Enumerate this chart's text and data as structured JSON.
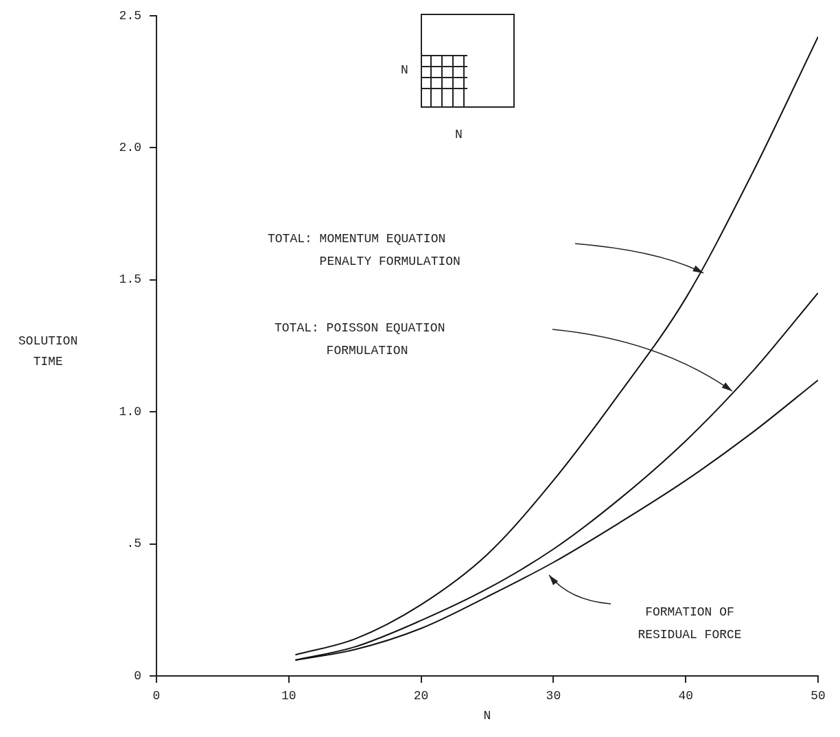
{
  "chart_data": {
    "type": "line",
    "xlabel": "N",
    "ylabel": "SOLUTION\nTIME",
    "x": [
      10.5,
      15,
      20,
      25,
      30,
      35,
      40,
      45,
      50
    ],
    "series": [
      {
        "color": "#111111",
        "values": [
          0.08,
          0.14,
          0.27,
          0.46,
          0.74,
          1.07,
          1.43,
          1.9,
          2.42
        ]
      },
      {
        "color": "#111111",
        "values": [
          0.06,
          0.11,
          0.21,
          0.33,
          0.48,
          0.67,
          0.89,
          1.15,
          1.45
        ]
      },
      {
        "color": "#111111",
        "values": [
          0.06,
          0.1,
          0.18,
          0.3,
          0.43,
          0.58,
          0.74,
          0.92,
          1.12
        ]
      }
    ],
    "xlim": [
      0,
      50
    ],
    "xticks": [
      0,
      10,
      20,
      30,
      40,
      50
    ],
    "ylim": [
      0,
      2.5
    ],
    "yticks": [
      0,
      {
        "value": 0.5,
        "label": ".5"
      },
      {
        "value": 1,
        "label": "1.0"
      },
      1.5,
      {
        "value": 2,
        "label": "2.0"
      },
      2.5
    ],
    "grid": false,
    "legend": false,
    "marker": "none",
    "line_style": "solid",
    "annotations": [
      "TOTAL: MOMENTUM EQUATION\n       PENALTY FORMULATION",
      "TOTAL: POISSON EQUATION\n       FORMULATION",
      "FORMATION OF\nRESIDUAL FORCE",
      "N",
      "N"
    ]
  }
}
